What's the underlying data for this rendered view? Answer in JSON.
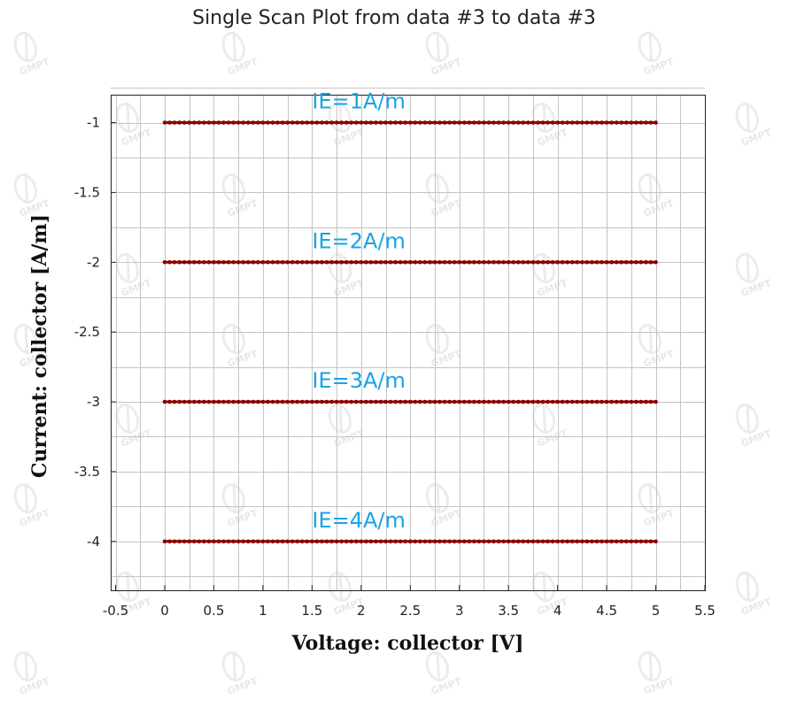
{
  "chart_data": {
    "type": "scatter",
    "title": "Single Scan Plot from data #3 to data #3",
    "xlabel": "Voltage: collector [V]",
    "ylabel": "Current: collector [A/m]",
    "xlim": [
      -0.55,
      5.5
    ],
    "ylim": [
      -4.35,
      -0.8
    ],
    "xticks": [
      "-0.5",
      "0",
      "0.5",
      "1",
      "1.5",
      "2",
      "2.5",
      "3",
      "3.5",
      "4",
      "4.5",
      "5",
      "5.5"
    ],
    "yticks": [
      "-1",
      "-1.5",
      "-2",
      "-2.5",
      "-3",
      "-3.5",
      "-4"
    ],
    "grid": true,
    "marker_color": "#8b0000",
    "label_color": "#1aa3e6",
    "watermark": "GMPT",
    "x_range": [
      0,
      5
    ],
    "series": [
      {
        "name": "IE=1A/m",
        "y": -1
      },
      {
        "name": "IE=2A/m",
        "y": -2
      },
      {
        "name": "IE=3A/m",
        "y": -3
      },
      {
        "name": "IE=4A/m",
        "y": -4
      }
    ]
  }
}
